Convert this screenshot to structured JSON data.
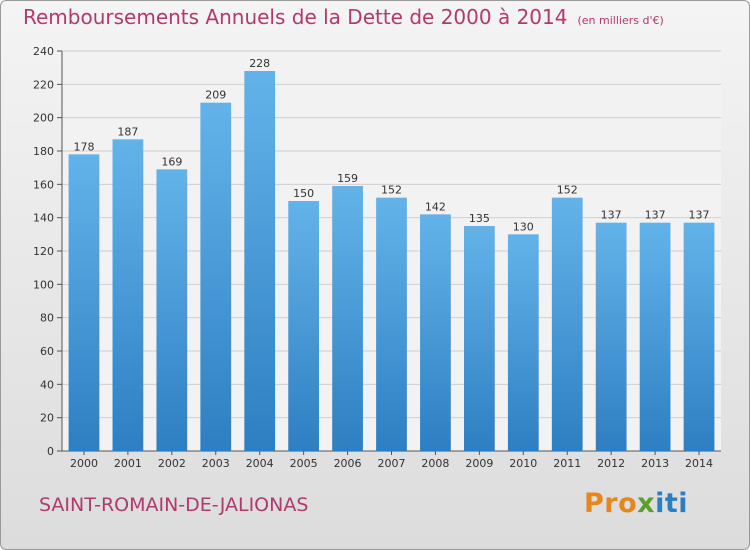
{
  "title": "Remboursements Annuels de la Dette de 2000 à 2014",
  "unit": "(en milliers d'€)",
  "town": "SAINT-ROMAIN-DE-JALIONAS",
  "logo": {
    "part1": "Pro",
    "part2": "x",
    "part3": "iti"
  },
  "colors": {
    "bar_top": "#63b3ea",
    "bar_bottom": "#2e7fc2",
    "title": "#b03a6e"
  },
  "chart_data": {
    "type": "bar",
    "title": "Remboursements Annuels de la Dette de 2000 à 2014",
    "subtitle": "(en milliers d'€)",
    "categories": [
      "2000",
      "2001",
      "2002",
      "2003",
      "2004",
      "2005",
      "2006",
      "2007",
      "2008",
      "2009",
      "2010",
      "2011",
      "2012",
      "2013",
      "2014"
    ],
    "values": [
      178,
      187,
      169,
      209,
      228,
      150,
      159,
      152,
      142,
      135,
      130,
      152,
      137,
      137,
      137
    ],
    "ylim": [
      0,
      240
    ],
    "yticks": [
      0,
      20,
      40,
      60,
      80,
      100,
      120,
      140,
      160,
      180,
      200,
      220,
      240
    ],
    "grid": true,
    "xlabel": "",
    "ylabel": ""
  }
}
